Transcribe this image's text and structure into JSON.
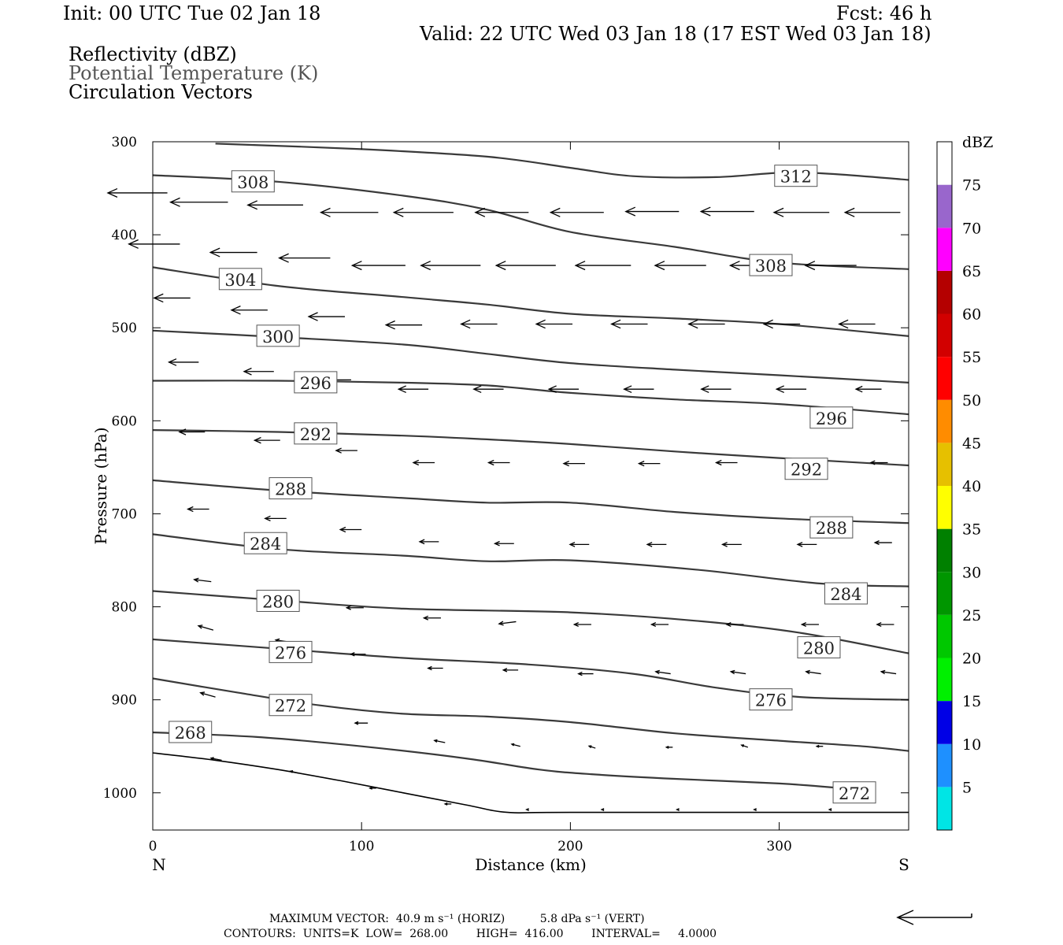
{
  "header": {
    "init": "Init: 00 UTC Tue 02 Jan 18",
    "fcst": "Fcst:   46 h",
    "valid": "Valid: 22 UTC Wed 03 Jan 18 (17 EST Wed 03 Jan 18)",
    "field1": "Reflectivity (dBZ)",
    "field2": "Potential Temperature (K)",
    "field3": "Circulation Vectors"
  },
  "footer": {
    "max_vector": "MAXIMUM VECTOR:  40.9 m s⁻¹ (HORIZ)          5.8 dPa s⁻¹ (VERT)",
    "contours": "CONTOURS:  UNITS=K  LOW=  268.00        HIGH=  416.00        INTERVAL=     4.0000"
  },
  "colors": {
    "contour": "#3a3a3a",
    "vector": "#000000",
    "colorbar": [
      "#00e5e5",
      "#1e90ff",
      "#0000e6",
      "#00f000",
      "#00c800",
      "#009600",
      "#008000",
      "#ffff00",
      "#e6c000",
      "#ff8c00",
      "#ff0000",
      "#d20000",
      "#b40000",
      "#ff00ff",
      "#9966cc",
      "#ffffff"
    ]
  },
  "chart_data": {
    "type": "cross-section",
    "xlabel": "Distance (km)",
    "ylabel": "Pressure (hPa)",
    "xlim": [
      0,
      362
    ],
    "ylim": [
      300,
      1040
    ],
    "y_scale": "linear (inverted)",
    "x_ticks": [
      "0",
      "100",
      "200",
      "300"
    ],
    "y_ticks": [
      "300",
      "400",
      "500",
      "600",
      "700",
      "800",
      "900",
      "1000"
    ],
    "left_end": "N",
    "right_end": "S",
    "colorbar": {
      "title": "dBZ",
      "labels": [
        "5",
        "10",
        "15",
        "20",
        "25",
        "30",
        "35",
        "40",
        "45",
        "50",
        "55",
        "60",
        "65",
        "70",
        "75"
      ]
    },
    "theta_contours": [
      {
        "value": 268,
        "points": [
          [
            0,
            935
          ],
          [
            50,
            940
          ],
          [
            100,
            950
          ],
          [
            150,
            963
          ],
          [
            185,
            975
          ],
          [
            210,
            980
          ],
          [
            250,
            985
          ],
          [
            300,
            990
          ],
          [
            330,
            995
          ]
        ]
      },
      {
        "value": 272,
        "points": [
          [
            0,
            877
          ],
          [
            40,
            892
          ],
          [
            80,
            906
          ],
          [
            120,
            915
          ],
          [
            160,
            918
          ],
          [
            200,
            924
          ],
          [
            250,
            936
          ],
          [
            300,
            944
          ],
          [
            340,
            950
          ],
          [
            362,
            955
          ]
        ]
      },
      {
        "value": 276,
        "points": [
          [
            0,
            835
          ],
          [
            60,
            845
          ],
          [
            120,
            855
          ],
          [
            180,
            862
          ],
          [
            230,
            872
          ],
          [
            270,
            887
          ],
          [
            310,
            897
          ],
          [
            362,
            900
          ]
        ]
      },
      {
        "value": 280,
        "points": [
          [
            0,
            783
          ],
          [
            60,
            793
          ],
          [
            120,
            802
          ],
          [
            200,
            806
          ],
          [
            260,
            815
          ],
          [
            310,
            828
          ],
          [
            362,
            850
          ]
        ]
      },
      {
        "value": 284,
        "points": [
          [
            0,
            722
          ],
          [
            60,
            738
          ],
          [
            120,
            745
          ],
          [
            160,
            751
          ],
          [
            200,
            750
          ],
          [
            260,
            760
          ],
          [
            320,
            775
          ],
          [
            362,
            778
          ]
        ]
      },
      {
        "value": 288,
        "points": [
          [
            0,
            664
          ],
          [
            60,
            675
          ],
          [
            120,
            683
          ],
          [
            160,
            688
          ],
          [
            200,
            688
          ],
          [
            250,
            698
          ],
          [
            300,
            705
          ],
          [
            362,
            710
          ]
        ]
      },
      {
        "value": 292,
        "points": [
          [
            0,
            610
          ],
          [
            60,
            612
          ],
          [
            120,
            616
          ],
          [
            160,
            620
          ],
          [
            200,
            625
          ],
          [
            250,
            633
          ],
          [
            300,
            640
          ],
          [
            362,
            648
          ]
        ]
      },
      {
        "value": 296,
        "points": [
          [
            0,
            557
          ],
          [
            60,
            557
          ],
          [
            120,
            559
          ],
          [
            160,
            562
          ],
          [
            200,
            570
          ],
          [
            250,
            577
          ],
          [
            300,
            582
          ],
          [
            362,
            593
          ]
        ]
      },
      {
        "value": 300,
        "points": [
          [
            0,
            503
          ],
          [
            60,
            510
          ],
          [
            120,
            518
          ],
          [
            160,
            528
          ],
          [
            200,
            538
          ],
          [
            250,
            545
          ],
          [
            300,
            551
          ],
          [
            362,
            559
          ]
        ]
      },
      {
        "value": 304,
        "points": [
          [
            0,
            435
          ],
          [
            60,
            455
          ],
          [
            120,
            467
          ],
          [
            160,
            475
          ],
          [
            200,
            485
          ],
          [
            250,
            490
          ],
          [
            300,
            496
          ],
          [
            362,
            509
          ]
        ]
      },
      {
        "value": 308,
        "points": [
          [
            0,
            336
          ],
          [
            60,
            343
          ],
          [
            120,
            358
          ],
          [
            160,
            373
          ],
          [
            200,
            397
          ],
          [
            250,
            413
          ],
          [
            300,
            430
          ],
          [
            362,
            437
          ]
        ]
      },
      {
        "value": 312,
        "points": [
          [
            30,
            302
          ],
          [
            100,
            308
          ],
          [
            160,
            316
          ],
          [
            200,
            328
          ],
          [
            230,
            337
          ],
          [
            270,
            338
          ],
          [
            310,
            333
          ],
          [
            362,
            341
          ]
        ]
      }
    ],
    "contour_labels": [
      {
        "text": "308",
        "x": 48,
        "p": 343
      },
      {
        "text": "312",
        "x": 308,
        "p": 337
      },
      {
        "text": "304",
        "x": 42,
        "p": 448
      },
      {
        "text": "308",
        "x": 296,
        "p": 433
      },
      {
        "text": "300",
        "x": 60,
        "p": 509
      },
      {
        "text": "296",
        "x": 78,
        "p": 559
      },
      {
        "text": "296",
        "x": 325,
        "p": 597
      },
      {
        "text": "292",
        "x": 78,
        "p": 614
      },
      {
        "text": "292",
        "x": 313,
        "p": 652
      },
      {
        "text": "288",
        "x": 66,
        "p": 673
      },
      {
        "text": "288",
        "x": 325,
        "p": 715
      },
      {
        "text": "284",
        "x": 54,
        "p": 732
      },
      {
        "text": "284",
        "x": 332,
        "p": 786
      },
      {
        "text": "280",
        "x": 60,
        "p": 794
      },
      {
        "text": "280",
        "x": 319,
        "p": 844
      },
      {
        "text": "276",
        "x": 66,
        "p": 849
      },
      {
        "text": "276",
        "x": 296,
        "p": 900
      },
      {
        "text": "272",
        "x": 66,
        "p": 906
      },
      {
        "text": "268",
        "x": 18,
        "p": 935
      },
      {
        "text": "272",
        "x": 336,
        "p": 1000
      }
    ],
    "topography": [
      [
        0,
        957
      ],
      [
        30,
        965
      ],
      [
        60,
        975
      ],
      [
        90,
        987
      ],
      [
        120,
        1000
      ],
      [
        150,
        1013
      ],
      [
        170,
        1021
      ],
      [
        200,
        1021
      ],
      [
        362,
        1021
      ]
    ],
    "vectors": [
      {
        "x": 7,
        "p": 355,
        "u": -28,
        "w": 0
      },
      {
        "x": 36,
        "p": 365,
        "u": -27,
        "w": 0
      },
      {
        "x": 72,
        "p": 368,
        "u": -26,
        "w": 0
      },
      {
        "x": 108,
        "p": 376,
        "u": -27,
        "w": 0
      },
      {
        "x": 144,
        "p": 376,
        "u": -28,
        "w": 0
      },
      {
        "x": 180,
        "p": 376,
        "u": -25,
        "w": 0
      },
      {
        "x": 216,
        "p": 376,
        "u": -25,
        "w": 0
      },
      {
        "x": 252,
        "p": 375,
        "u": -25,
        "w": 0
      },
      {
        "x": 288,
        "p": 375,
        "u": -25,
        "w": 0
      },
      {
        "x": 324,
        "p": 376,
        "u": -26,
        "w": 0
      },
      {
        "x": 358,
        "p": 376,
        "u": -26,
        "w": 0
      },
      {
        "x": 13,
        "p": 410,
        "u": -24,
        "w": 0
      },
      {
        "x": 50,
        "p": 419,
        "u": -22,
        "w": 0
      },
      {
        "x": 85,
        "p": 425,
        "u": -24,
        "w": 0
      },
      {
        "x": 121,
        "p": 433,
        "u": -25,
        "w": 0
      },
      {
        "x": 157,
        "p": 433,
        "u": -28,
        "w": 0
      },
      {
        "x": 193,
        "p": 433,
        "u": -28,
        "w": 0
      },
      {
        "x": 229,
        "p": 433,
        "u": -26,
        "w": 0
      },
      {
        "x": 265,
        "p": 433,
        "u": -24,
        "w": 0
      },
      {
        "x": 301,
        "p": 433,
        "u": -24,
        "w": 0
      },
      {
        "x": 337,
        "p": 433,
        "u": -24,
        "w": 0
      },
      {
        "x": 18,
        "p": 468,
        "u": -17,
        "w": 0
      },
      {
        "x": 55,
        "p": 481,
        "u": -17,
        "w": 0
      },
      {
        "x": 92,
        "p": 488,
        "u": -17,
        "w": 0
      },
      {
        "x": 129,
        "p": 497,
        "u": -17,
        "w": 0
      },
      {
        "x": 165,
        "p": 496,
        "u": -17,
        "w": 0
      },
      {
        "x": 201,
        "p": 496,
        "u": -17,
        "w": 0
      },
      {
        "x": 237,
        "p": 496,
        "u": -17,
        "w": 0
      },
      {
        "x": 274,
        "p": 496,
        "u": -17,
        "w": 0
      },
      {
        "x": 310,
        "p": 496,
        "u": -17,
        "w": 0
      },
      {
        "x": 346,
        "p": 496,
        "u": -17,
        "w": 0
      },
      {
        "x": 22,
        "p": 537,
        "u": -14,
        "w": 0
      },
      {
        "x": 58,
        "p": 547,
        "u": -14,
        "w": 0
      },
      {
        "x": 95,
        "p": 556,
        "u": -14,
        "w": 0
      },
      {
        "x": 132,
        "p": 566,
        "u": -14,
        "w": 0
      },
      {
        "x": 168,
        "p": 566,
        "u": -14,
        "w": 0
      },
      {
        "x": 204,
        "p": 566,
        "u": -14,
        "w": 0
      },
      {
        "x": 240,
        "p": 566,
        "u": -14,
        "w": 0
      },
      {
        "x": 277,
        "p": 566,
        "u": -14,
        "w": 0
      },
      {
        "x": 313,
        "p": 566,
        "u": -14,
        "w": 0
      },
      {
        "x": 349,
        "p": 566,
        "u": -12,
        "w": 0
      },
      {
        "x": 25,
        "p": 612,
        "u": -12,
        "w": 0
      },
      {
        "x": 61,
        "p": 621,
        "u": -12,
        "w": 0
      },
      {
        "x": 98,
        "p": 632,
        "u": -10,
        "w": 0
      },
      {
        "x": 135,
        "p": 645,
        "u": -10,
        "w": 0
      },
      {
        "x": 171,
        "p": 645,
        "u": -10,
        "w": 0
      },
      {
        "x": 207,
        "p": 646,
        "u": -10,
        "w": 0
      },
      {
        "x": 243,
        "p": 646,
        "u": -10,
        "w": 0
      },
      {
        "x": 280,
        "p": 645,
        "u": -10,
        "w": 0
      },
      {
        "x": 316,
        "p": 645,
        "u": -10,
        "w": 0
      },
      {
        "x": 352,
        "p": 645,
        "u": -8,
        "w": 0
      },
      {
        "x": 27,
        "p": 695,
        "u": -10,
        "w": 0
      },
      {
        "x": 64,
        "p": 705,
        "u": -10,
        "w": 0
      },
      {
        "x": 100,
        "p": 717,
        "u": -10,
        "w": 0
      },
      {
        "x": 137,
        "p": 730,
        "u": -9,
        "w": 0
      },
      {
        "x": 173,
        "p": 732,
        "u": -9,
        "w": 0
      },
      {
        "x": 209,
        "p": 733,
        "u": -9,
        "w": 0
      },
      {
        "x": 246,
        "p": 733,
        "u": -9,
        "w": 0
      },
      {
        "x": 282,
        "p": 733,
        "u": -9,
        "w": 0
      },
      {
        "x": 318,
        "p": 733,
        "u": -9,
        "w": 0
      },
      {
        "x": 354,
        "p": 731,
        "u": -8,
        "w": 0
      },
      {
        "x": 28,
        "p": 773,
        "u": -8,
        "w": 1
      },
      {
        "x": 65,
        "p": 786,
        "u": -8,
        "w": 1
      },
      {
        "x": 101,
        "p": 801,
        "u": -8,
        "w": 0
      },
      {
        "x": 138,
        "p": 812,
        "u": -8,
        "w": 0
      },
      {
        "x": 174,
        "p": 816,
        "u": -8,
        "w": -1
      },
      {
        "x": 210,
        "p": 819,
        "u": -8,
        "w": 0
      },
      {
        "x": 247,
        "p": 819,
        "u": -8,
        "w": 0
      },
      {
        "x": 283,
        "p": 819,
        "u": -8,
        "w": 0
      },
      {
        "x": 319,
        "p": 819,
        "u": -8,
        "w": 0
      },
      {
        "x": 355,
        "p": 819,
        "u": -8,
        "w": 0
      },
      {
        "x": 29,
        "p": 825,
        "u": -7,
        "w": 2
      },
      {
        "x": 66,
        "p": 838,
        "u": -7,
        "w": 1
      },
      {
        "x": 102,
        "p": 851,
        "u": -7,
        "w": 0
      },
      {
        "x": 139,
        "p": 866,
        "u": -7,
        "w": 0
      },
      {
        "x": 175,
        "p": 868,
        "u": -7,
        "w": 0
      },
      {
        "x": 211,
        "p": 872,
        "u": -7,
        "w": 0
      },
      {
        "x": 248,
        "p": 872,
        "u": -7,
        "w": 1
      },
      {
        "x": 284,
        "p": 872,
        "u": -7,
        "w": 1
      },
      {
        "x": 320,
        "p": 872,
        "u": -7,
        "w": 1
      },
      {
        "x": 356,
        "p": 872,
        "u": -7,
        "w": 1
      },
      {
        "x": 30,
        "p": 897,
        "u": -7,
        "w": 2
      },
      {
        "x": 67,
        "p": 910,
        "u": -7,
        "w": 2
      },
      {
        "x": 103,
        "p": 925,
        "u": -6,
        "w": 0
      },
      {
        "x": 140,
        "p": 946,
        "u": -5,
        "w": 1
      },
      {
        "x": 176,
        "p": 950,
        "u": -4,
        "w": 1
      },
      {
        "x": 212,
        "p": 952,
        "u": -3,
        "w": 1
      },
      {
        "x": 249,
        "p": 951,
        "u": -3,
        "w": 0
      },
      {
        "x": 285,
        "p": 951,
        "u": -3,
        "w": 1
      },
      {
        "x": 321,
        "p": 950,
        "u": -3,
        "w": 0
      },
      {
        "x": 33,
        "p": 965,
        "u": -5,
        "w": 1
      },
      {
        "x": 70,
        "p": 979,
        "u": -4,
        "w": 1
      },
      {
        "x": 107,
        "p": 995,
        "u": -3,
        "w": 0
      },
      {
        "x": 143,
        "p": 1012,
        "u": -3,
        "w": 0
      },
      {
        "x": 180,
        "p": 1018,
        "u": -1,
        "w": 0
      },
      {
        "x": 216,
        "p": 1018,
        "u": -1,
        "w": 0
      },
      {
        "x": 252,
        "p": 1018,
        "u": -1,
        "w": 0
      },
      {
        "x": 289,
        "p": 1018,
        "u": -1,
        "w": 0
      },
      {
        "x": 325,
        "p": 1018,
        "u": -1,
        "w": 0
      }
    ]
  }
}
